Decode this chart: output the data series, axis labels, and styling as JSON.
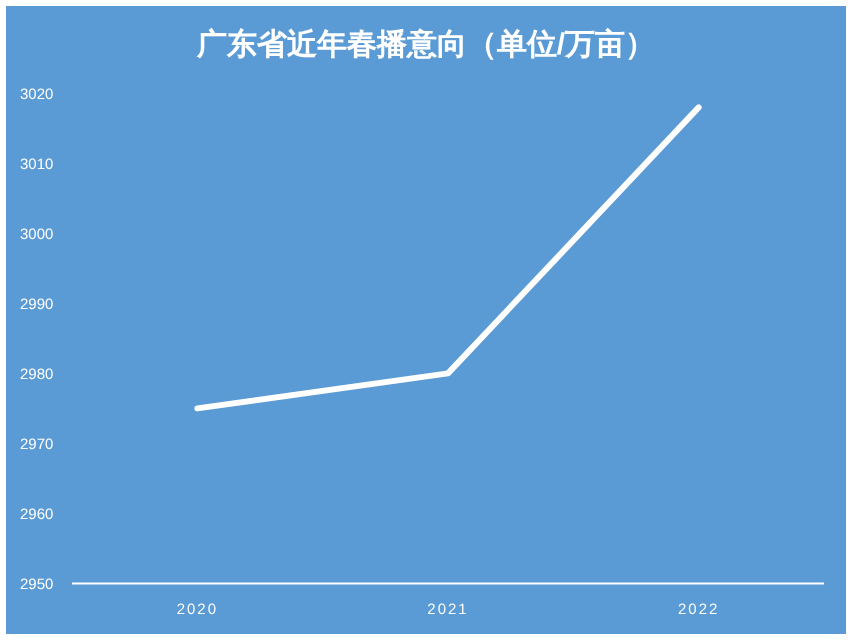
{
  "chart_data": {
    "type": "line",
    "title": "广东省近年春播意向（单位/万亩）",
    "categories": [
      "2020",
      "2021",
      "2022"
    ],
    "series": [
      {
        "color": "#ffffff",
        "values": [
          2975,
          2980,
          3018
        ]
      }
    ],
    "ylim": [
      2950,
      3020
    ],
    "yticks": [
      2950,
      2960,
      2970,
      2980,
      2990,
      3000,
      3010,
      3020
    ],
    "grid": false,
    "marker": "none",
    "line_style": "solid"
  }
}
